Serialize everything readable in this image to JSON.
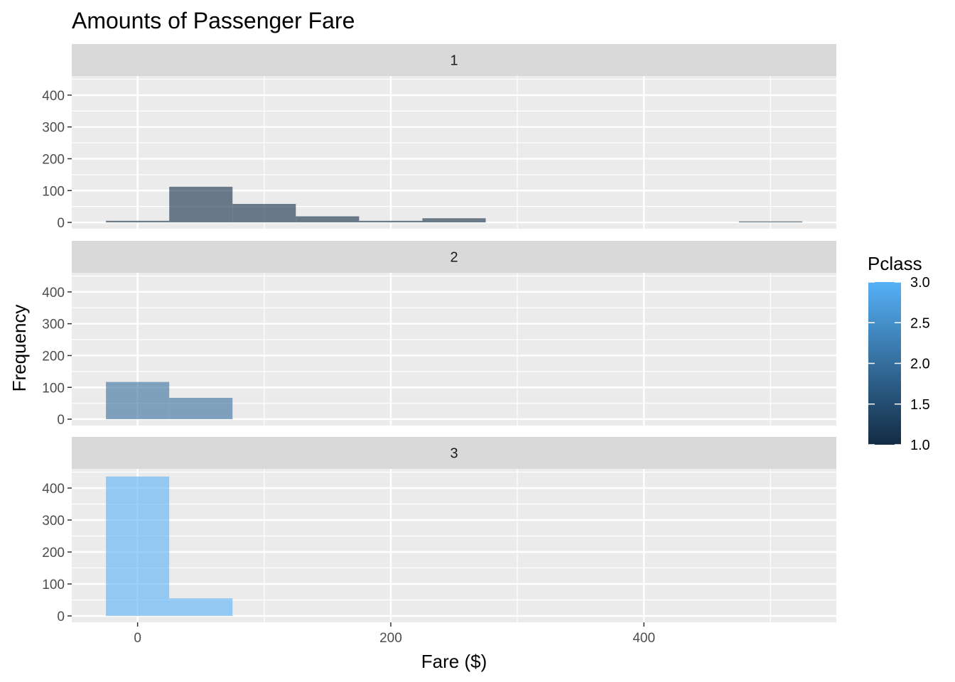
{
  "chart_data": {
    "type": "bar",
    "subtype": "faceted-histogram",
    "title": "Amounts of Passenger Fare",
    "xlabel": "Fare ($)",
    "ylabel": "Frequency",
    "xlim": [
      -52,
      552
    ],
    "ylim": [
      -20,
      460
    ],
    "x_ticks": [
      0,
      200,
      400
    ],
    "y_ticks": [
      0,
      100,
      200,
      300,
      400
    ],
    "grid": true,
    "bin_width": 50,
    "legend": {
      "title": "Pclass",
      "position": "right",
      "ticks": [
        1.0,
        1.5,
        2.0,
        2.5,
        3.0
      ],
      "tick_labels": [
        "1.0",
        "1.5",
        "2.0",
        "2.5",
        "3.0"
      ],
      "color_low": "#132b43",
      "color_high": "#56b1f7"
    },
    "facets": [
      {
        "label": "1",
        "pclass": 1,
        "bins": [
          {
            "x0": -25,
            "x1": 25,
            "count": 5
          },
          {
            "x0": 25,
            "x1": 75,
            "count": 112
          },
          {
            "x0": 75,
            "x1": 125,
            "count": 58
          },
          {
            "x0": 125,
            "x1": 175,
            "count": 19
          },
          {
            "x0": 175,
            "x1": 225,
            "count": 5
          },
          {
            "x0": 225,
            "x1": 275,
            "count": 13
          },
          {
            "x0": 475,
            "x1": 525,
            "count": 3
          }
        ]
      },
      {
        "label": "2",
        "pclass": 2,
        "bins": [
          {
            "x0": -25,
            "x1": 25,
            "count": 117
          },
          {
            "x0": 25,
            "x1": 75,
            "count": 67
          }
        ]
      },
      {
        "label": "3",
        "pclass": 3,
        "bins": [
          {
            "x0": -25,
            "x1": 25,
            "count": 436
          },
          {
            "x0": 25,
            "x1": 75,
            "count": 55
          }
        ]
      }
    ]
  }
}
